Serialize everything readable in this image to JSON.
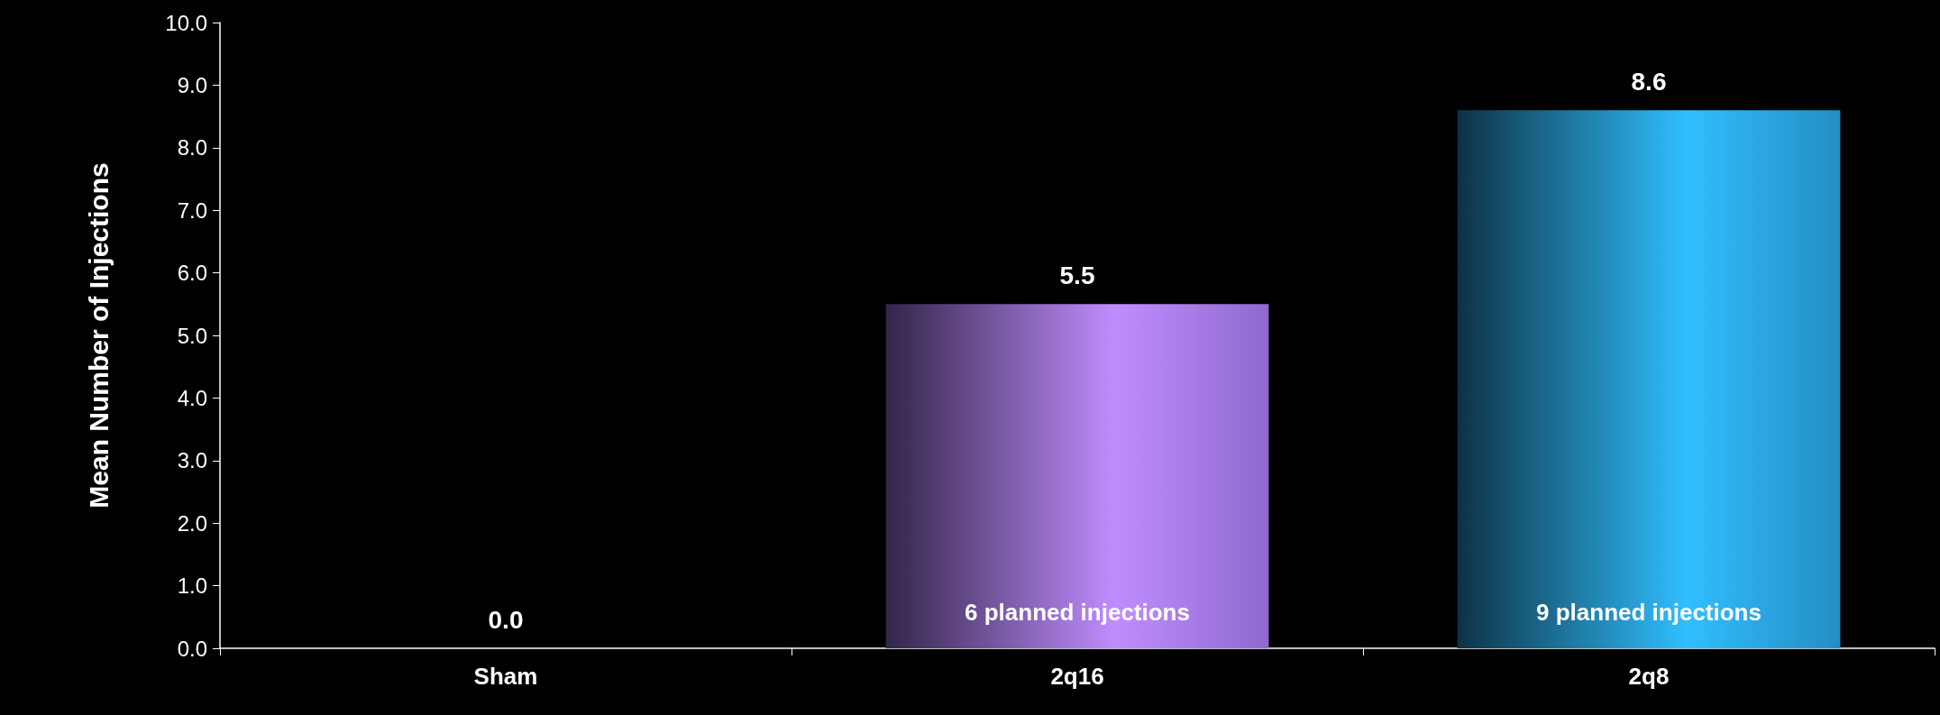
{
  "chart_data": {
    "type": "bar",
    "ylabel": "Mean Number of Injections",
    "categories": [
      "Sham",
      "2q16",
      "2q8"
    ],
    "values": [
      0,
      5.5,
      8.6
    ],
    "colors": [
      "#a77bf5",
      "#a77bf5",
      "#2aa6e6"
    ],
    "value_labels": [
      "0.0",
      "5.5",
      "8.6"
    ],
    "ylim": [
      0,
      10
    ],
    "yticks": [
      {
        "value": 0,
        "label": "0.0"
      },
      {
        "value": 1,
        "label": "1.0"
      },
      {
        "value": 2,
        "label": "2.0"
      },
      {
        "value": 3,
        "label": "3.0"
      },
      {
        "value": 4,
        "label": "4.0"
      },
      {
        "value": 5,
        "label": "5.0"
      },
      {
        "value": 6,
        "label": "6.0"
      },
      {
        "value": 7,
        "label": "7.0"
      },
      {
        "value": 8,
        "label": "8.0"
      },
      {
        "value": 9,
        "label": "9.0"
      },
      {
        "value": 10,
        "label": "10.0"
      }
    ],
    "annotations": [
      "6 planned injections",
      "9 planned injections"
    ],
    "grid": false
  }
}
